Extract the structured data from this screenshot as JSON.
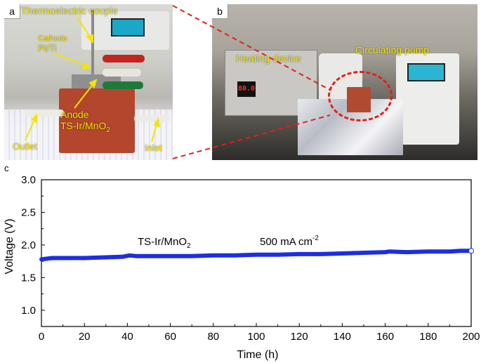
{
  "panel_a": {
    "letter": "a",
    "labels": {
      "thermocouple": "Thermoelectric couple",
      "cathode_title": "Cathode",
      "cathode_material": "Pt/Ti",
      "anode_title": "Anode",
      "anode_material": "TS-Ir/MnO",
      "anode_subscript": "2",
      "outlet": "Outlet",
      "inlet": "Inlet"
    }
  },
  "panel_b": {
    "letter": "b",
    "labels": {
      "heating_device": "Heating device",
      "circulating_pump": "Circulating pump",
      "display_value": "80.0"
    }
  },
  "panel_c": {
    "letter": "c"
  },
  "colors": {
    "series": "#1d2ee0",
    "annotation_yellow": "#f2e600",
    "highlight_red": "#e2201a"
  },
  "chart_data": {
    "type": "line",
    "xlabel": "Time (h)",
    "ylabel": "Voltage (V)",
    "xlim": [
      0,
      200
    ],
    "ylim": [
      0.75,
      3.0
    ],
    "xticks": [
      0,
      20,
      40,
      60,
      80,
      100,
      120,
      140,
      160,
      180,
      200
    ],
    "yticks": [
      1.0,
      1.5,
      2.0,
      2.5,
      3.0
    ],
    "ytick_labels": [
      "1.0",
      "1.5",
      "2.0",
      "2.5",
      "3.0"
    ],
    "annotations": {
      "catalyst": "TS-Ir/MnO",
      "catalyst_subscript": "2",
      "current_density": "500 mA cm",
      "current_density_superscript": "-2"
    },
    "series": [
      {
        "x": [
          0,
          5,
          10,
          20,
          30,
          38,
          41,
          44,
          50,
          60,
          70,
          80,
          90,
          100,
          110,
          120,
          130,
          140,
          150,
          160,
          162,
          170,
          180,
          190,
          195,
          200
        ],
        "y": [
          1.78,
          1.8,
          1.8,
          1.8,
          1.81,
          1.82,
          1.84,
          1.83,
          1.83,
          1.83,
          1.83,
          1.84,
          1.84,
          1.85,
          1.85,
          1.86,
          1.86,
          1.87,
          1.88,
          1.89,
          1.9,
          1.89,
          1.9,
          1.9,
          1.91,
          1.91
        ]
      }
    ]
  }
}
